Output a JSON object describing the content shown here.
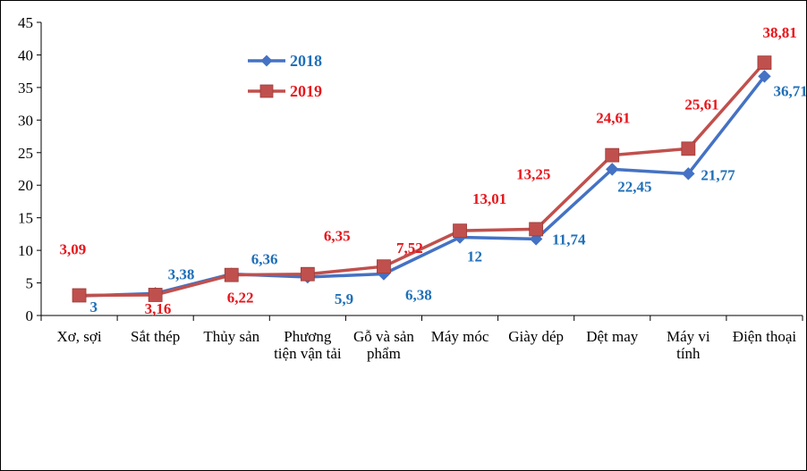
{
  "chart_data": {
    "type": "line",
    "title": "",
    "xlabel": "",
    "ylabel": "",
    "ylim": [
      0,
      45
    ],
    "yticks": [
      0,
      5,
      10,
      15,
      20,
      25,
      30,
      35,
      40,
      45
    ],
    "grid": false,
    "legend_position": "top-left",
    "categories": [
      [
        "Xơ, sợi"
      ],
      [
        "Sắt thép"
      ],
      [
        "Thủy sản"
      ],
      [
        "Phương",
        "tiện vận tải"
      ],
      [
        "Gỗ và sản",
        "phẩm"
      ],
      [
        "Máy móc"
      ],
      [
        "Giày dép"
      ],
      [
        "Dệt may"
      ],
      [
        "Máy vi",
        "tính"
      ],
      [
        "Điện thoại"
      ]
    ],
    "series": [
      {
        "name": "2018",
        "color": "#4472C4",
        "label_color": "#1F6FB8",
        "marker": "diamond",
        "values": [
          3,
          3.38,
          6.36,
          5.9,
          6.38,
          12,
          11.74,
          22.45,
          21.77,
          36.71
        ],
        "labels": [
          "3",
          "3,38",
          "6,36",
          "5,9",
          "6,38",
          "12",
          "11,74",
          "22,45",
          "21,77",
          "36,71"
        ]
      },
      {
        "name": "2019",
        "color": "#C0504D",
        "label_color": "#E8151B",
        "marker": "square",
        "values": [
          3.09,
          3.16,
          6.22,
          6.35,
          7.52,
          13.01,
          13.25,
          24.61,
          25.61,
          38.81
        ],
        "labels": [
          "3,09",
          "3,16",
          "6,22",
          "6,35",
          "7,52",
          "13,01",
          "13,25",
          "24,61",
          "25,61",
          "38,81"
        ]
      }
    ]
  }
}
